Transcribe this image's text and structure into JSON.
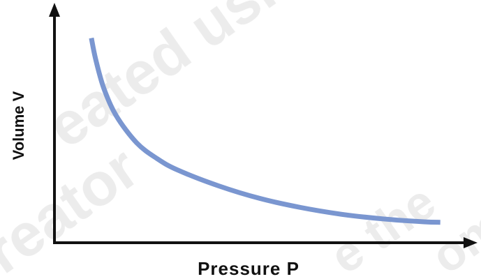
{
  "chart_data": {
    "type": "line",
    "title": "",
    "xlabel": "Pressure P",
    "ylabel": "Volume V",
    "grid": false,
    "legend": "none",
    "x_ticks": [],
    "y_ticks": [],
    "xlim": [
      0,
      10
    ],
    "ylim": [
      0,
      10
    ],
    "series": [
      {
        "color": "#7a96d0",
        "x": [
          0.9,
          1.0,
          1.2,
          1.5,
          2.0,
          2.5,
          3.0,
          4.0,
          5.0,
          6.0,
          7.0,
          8.0,
          9.0,
          9.4
        ],
        "y": [
          9.0,
          8.1,
          6.8,
          5.6,
          4.4,
          3.7,
          3.2,
          2.5,
          1.95,
          1.55,
          1.25,
          1.05,
          0.92,
          0.9
        ]
      }
    ]
  },
  "colors": {
    "axis": "#111111",
    "curve": "#7a96d0",
    "watermark": "#c9c9c9"
  },
  "watermark": {
    "fragments": [
      "eated usin",
      "reator",
      "e the",
      "om"
    ]
  }
}
